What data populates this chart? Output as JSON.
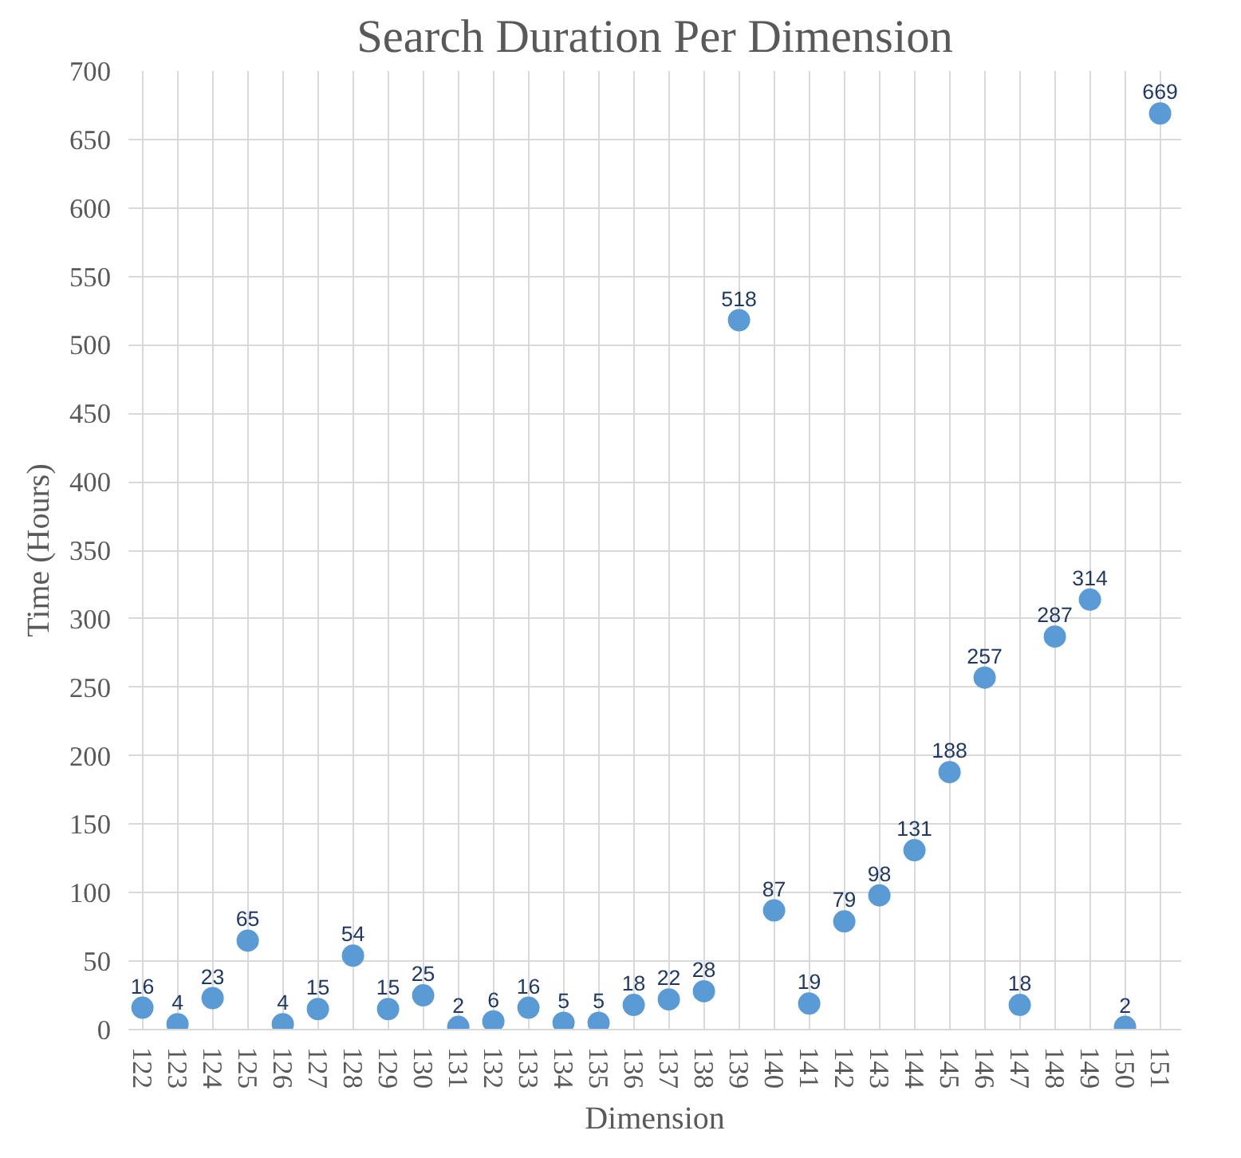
{
  "chart_data": {
    "type": "scatter",
    "title": "Search Duration Per Dimension",
    "xlabel": "Dimension",
    "ylabel": "Time (Hours)",
    "categories": [
      "122",
      "123",
      "124",
      "125",
      "126",
      "127",
      "128",
      "129",
      "130",
      "131",
      "132",
      "133",
      "134",
      "135",
      "136",
      "137",
      "138",
      "139",
      "140",
      "141",
      "142",
      "143",
      "144",
      "145",
      "146",
      "147",
      "148",
      "149",
      "150",
      "151"
    ],
    "values": [
      16,
      4,
      23,
      65,
      4,
      15,
      54,
      15,
      25,
      2,
      6,
      16,
      5,
      5,
      18,
      22,
      28,
      518,
      87,
      19,
      79,
      98,
      131,
      188,
      257,
      18,
      287,
      314,
      2,
      669
    ],
    "color": "#5b9bd5",
    "marker": "circle",
    "data_labels": true,
    "ylim": [
      0,
      700
    ],
    "yticks": [
      0,
      50,
      100,
      150,
      200,
      250,
      300,
      350,
      400,
      450,
      500,
      550,
      600,
      650,
      700
    ],
    "grid": true
  }
}
